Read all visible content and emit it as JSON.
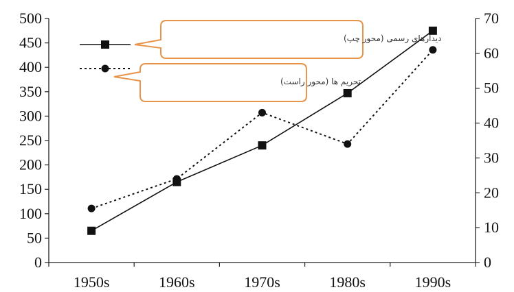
{
  "chart_data": {
    "type": "line",
    "categories": [
      "1950s",
      "1960s",
      "1970s",
      "1980s",
      "1990s"
    ],
    "series": [
      {
        "name": "دیدارهای رسمی (محور چپ)",
        "axis": "left",
        "values": [
          65,
          165,
          240,
          347,
          475
        ],
        "line_style": "solid",
        "marker": "square",
        "color": "#111111"
      },
      {
        "name": "تحریم ها (محور راست)",
        "axis": "right",
        "values": [
          15.5,
          24,
          43,
          34,
          61
        ],
        "line_style": "dotted",
        "marker": "circle",
        "color": "#111111"
      }
    ],
    "left_axis": {
      "ylim": [
        0,
        500
      ],
      "ticks": [
        "0",
        "50",
        "100",
        "150",
        "200",
        "250",
        "300",
        "350",
        "400",
        "450",
        "500"
      ]
    },
    "right_axis": {
      "ylim": [
        0,
        70
      ],
      "ticks": [
        "0",
        "10",
        "20",
        "30",
        "40",
        "50",
        "60",
        "70"
      ]
    },
    "grid": false,
    "legend_placement": "top-left",
    "callout_border_color": "#e8944a"
  }
}
